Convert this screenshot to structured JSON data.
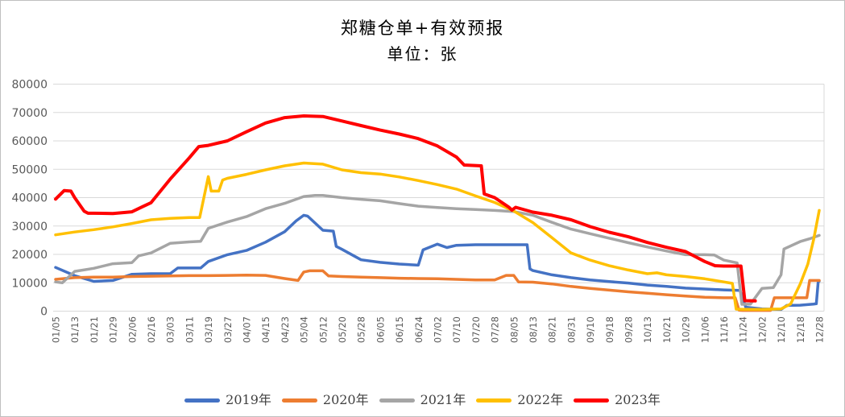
{
  "chart_data": {
    "type": "line",
    "title": "郑糖仓单+有效预报",
    "subtitle": "单位：张",
    "unit": "张",
    "ylim": [
      0,
      80000
    ],
    "ytick_step": 10000,
    "y_tick_labels": [
      "0",
      "10000",
      "20000",
      "30000",
      "40000",
      "50000",
      "60000",
      "70000",
      "80000"
    ],
    "grid": "horizontal-light-gray",
    "legend_position": "bottom",
    "axis_label_color": "#595959",
    "gridline_color": "#d9d9d9",
    "x_tick_labels": [
      "01/05",
      "01/13",
      "01/21",
      "01/29",
      "02/06",
      "02/16",
      "03/03",
      "03/11",
      "03/19",
      "03/27",
      "04/07",
      "04/15",
      "04/23",
      "05/04",
      "05/12",
      "05/20",
      "05/28",
      "06/05",
      "06/15",
      "06/24",
      "07/02",
      "07/10",
      "07/20",
      "07/28",
      "08/05",
      "08/13",
      "08/21",
      "08/31",
      "09/10",
      "09/18",
      "09/28",
      "10/13",
      "10/21",
      "10/29",
      "11/06",
      "11/16",
      "11/24",
      "12/02",
      "12/10",
      "12/18",
      "12/28"
    ],
    "series": [
      {
        "name": "2019年",
        "color": "#4472C4",
        "width": 3.5,
        "points": [
          [
            0,
            15400
          ],
          [
            1,
            12500
          ],
          [
            2,
            10500
          ],
          [
            3,
            10800
          ],
          [
            4,
            13000
          ],
          [
            5,
            13200
          ],
          [
            6,
            13200
          ],
          [
            6.4,
            15200
          ],
          [
            7,
            15200
          ],
          [
            7.6,
            15200
          ],
          [
            8,
            17500
          ],
          [
            9,
            19900
          ],
          [
            10,
            21400
          ],
          [
            11,
            24300
          ],
          [
            12,
            28000
          ],
          [
            12.6,
            31800
          ],
          [
            13,
            33800
          ],
          [
            13.2,
            33500
          ],
          [
            14,
            28500
          ],
          [
            14.55,
            28200
          ],
          [
            14.7,
            22800
          ],
          [
            15,
            21800
          ],
          [
            16,
            18100
          ],
          [
            17,
            17200
          ],
          [
            18,
            16600
          ],
          [
            19,
            16200
          ],
          [
            19.25,
            21600
          ],
          [
            20,
            23600
          ],
          [
            20.5,
            22400
          ],
          [
            21,
            23200
          ],
          [
            22,
            23400
          ],
          [
            23,
            23400
          ],
          [
            24,
            23400
          ],
          [
            24.7,
            23400
          ],
          [
            24.85,
            14900
          ],
          [
            25,
            14300
          ],
          [
            26,
            12800
          ],
          [
            27,
            11800
          ],
          [
            28,
            11000
          ],
          [
            29,
            10400
          ],
          [
            30,
            9900
          ],
          [
            31,
            9200
          ],
          [
            32,
            8700
          ],
          [
            33,
            8100
          ],
          [
            34,
            7800
          ],
          [
            35,
            7500
          ],
          [
            35.85,
            7300
          ],
          [
            36.15,
            1400
          ],
          [
            37,
            800
          ],
          [
            38,
            600
          ],
          [
            38.3,
            2000
          ],
          [
            39,
            2100
          ],
          [
            39.7,
            2500
          ],
          [
            39.85,
            2600
          ],
          [
            39.95,
            10600
          ],
          [
            40,
            10600
          ]
        ]
      },
      {
        "name": "2020年",
        "color": "#ED7D31",
        "width": 3.5,
        "points": [
          [
            0,
            11200
          ],
          [
            1,
            11800
          ],
          [
            2,
            12000
          ],
          [
            3,
            12000
          ],
          [
            4,
            12200
          ],
          [
            5,
            12300
          ],
          [
            6,
            12400
          ],
          [
            7,
            12500
          ],
          [
            8,
            12500
          ],
          [
            9,
            12600
          ],
          [
            10,
            12700
          ],
          [
            11,
            12600
          ],
          [
            12,
            11500
          ],
          [
            12.7,
            10800
          ],
          [
            13,
            13800
          ],
          [
            13.3,
            14200
          ],
          [
            14,
            14200
          ],
          [
            14.3,
            12400
          ],
          [
            15,
            12200
          ],
          [
            16,
            12000
          ],
          [
            17,
            11800
          ],
          [
            18,
            11600
          ],
          [
            19,
            11500
          ],
          [
            20,
            11400
          ],
          [
            21,
            11200
          ],
          [
            22,
            11000
          ],
          [
            23,
            11000
          ],
          [
            23.6,
            12600
          ],
          [
            24,
            12600
          ],
          [
            24.25,
            10300
          ],
          [
            25,
            10200
          ],
          [
            26,
            9600
          ],
          [
            27,
            8700
          ],
          [
            28,
            8000
          ],
          [
            29,
            7400
          ],
          [
            30,
            6800
          ],
          [
            31,
            6300
          ],
          [
            32,
            5800
          ],
          [
            33,
            5300
          ],
          [
            34,
            4900
          ],
          [
            35,
            4700
          ],
          [
            35.6,
            4700
          ],
          [
            35.8,
            300
          ],
          [
            36,
            250
          ],
          [
            37,
            250
          ],
          [
            37.45,
            250
          ],
          [
            37.65,
            4700
          ],
          [
            38,
            4700
          ],
          [
            39,
            4700
          ],
          [
            39.35,
            4700
          ],
          [
            39.5,
            10800
          ],
          [
            40,
            10800
          ]
        ]
      },
      {
        "name": "2021年",
        "color": "#A5A5A5",
        "width": 3.5,
        "points": [
          [
            0,
            10300
          ],
          [
            0.35,
            10000
          ],
          [
            1,
            14000
          ],
          [
            2,
            15100
          ],
          [
            3,
            16700
          ],
          [
            4,
            17100
          ],
          [
            4.35,
            19500
          ],
          [
            5,
            20500
          ],
          [
            6,
            23900
          ],
          [
            7,
            24400
          ],
          [
            7.6,
            24600
          ],
          [
            8,
            29200
          ],
          [
            9,
            31400
          ],
          [
            10,
            33300
          ],
          [
            11,
            36100
          ],
          [
            12,
            38000
          ],
          [
            13,
            40400
          ],
          [
            13.6,
            40800
          ],
          [
            14,
            40800
          ],
          [
            15,
            40000
          ],
          [
            16,
            39400
          ],
          [
            17,
            38900
          ],
          [
            18,
            37900
          ],
          [
            19,
            37000
          ],
          [
            20,
            36500
          ],
          [
            21,
            36100
          ],
          [
            22,
            35800
          ],
          [
            23,
            35500
          ],
          [
            24,
            35100
          ],
          [
            25,
            33800
          ],
          [
            26,
            31300
          ],
          [
            27,
            28900
          ],
          [
            28,
            27300
          ],
          [
            29,
            25700
          ],
          [
            30,
            24100
          ],
          [
            31,
            22600
          ],
          [
            32,
            21200
          ],
          [
            33,
            19900
          ],
          [
            34,
            19900
          ],
          [
            34.5,
            19800
          ],
          [
            35,
            18000
          ],
          [
            35.7,
            17000
          ],
          [
            35.95,
            2400
          ],
          [
            36.4,
            2500
          ],
          [
            37,
            8000
          ],
          [
            37.6,
            8300
          ],
          [
            38,
            12800
          ],
          [
            38.15,
            21900
          ],
          [
            39,
            24500
          ],
          [
            39.5,
            25500
          ],
          [
            40,
            26700
          ]
        ]
      },
      {
        "name": "2022年",
        "color": "#FFC000",
        "width": 3.5,
        "points": [
          [
            0,
            26900
          ],
          [
            1,
            27900
          ],
          [
            2,
            28700
          ],
          [
            3,
            29700
          ],
          [
            4,
            30900
          ],
          [
            5,
            32200
          ],
          [
            6,
            32700
          ],
          [
            7,
            33000
          ],
          [
            7.55,
            33000
          ],
          [
            8,
            47400
          ],
          [
            8.15,
            42300
          ],
          [
            8.55,
            42300
          ],
          [
            8.75,
            46200
          ],
          [
            9,
            46800
          ],
          [
            10,
            48200
          ],
          [
            11,
            49800
          ],
          [
            12,
            51200
          ],
          [
            13,
            52200
          ],
          [
            14,
            51800
          ],
          [
            15,
            49800
          ],
          [
            16,
            48800
          ],
          [
            17,
            48300
          ],
          [
            18,
            47300
          ],
          [
            19,
            46000
          ],
          [
            20,
            44600
          ],
          [
            21,
            43000
          ],
          [
            22,
            40600
          ],
          [
            23,
            38300
          ],
          [
            24,
            35300
          ],
          [
            25,
            31200
          ],
          [
            26,
            25900
          ],
          [
            27,
            20500
          ],
          [
            28,
            18000
          ],
          [
            29,
            16000
          ],
          [
            30,
            14500
          ],
          [
            31,
            13200
          ],
          [
            31.5,
            13500
          ],
          [
            32,
            12800
          ],
          [
            33,
            12200
          ],
          [
            34,
            11400
          ],
          [
            35,
            10300
          ],
          [
            35.45,
            9800
          ],
          [
            35.65,
            700
          ],
          [
            36,
            650
          ],
          [
            37,
            600
          ],
          [
            38,
            800
          ],
          [
            38.5,
            2500
          ],
          [
            39,
            9500
          ],
          [
            39.4,
            16500
          ],
          [
            39.7,
            25000
          ],
          [
            40,
            35500
          ]
        ]
      },
      {
        "name": "2023年",
        "color": "#FF0000",
        "width": 4,
        "points": [
          [
            0,
            39500
          ],
          [
            0.45,
            42500
          ],
          [
            0.8,
            42300
          ],
          [
            1,
            40000
          ],
          [
            1.5,
            35200
          ],
          [
            1.7,
            34500
          ],
          [
            2,
            34500
          ],
          [
            3,
            34400
          ],
          [
            4,
            35000
          ],
          [
            4.55,
            36800
          ],
          [
            5,
            38200
          ],
          [
            6,
            46500
          ],
          [
            7,
            54000
          ],
          [
            7.5,
            58000
          ],
          [
            8,
            58400
          ],
          [
            9,
            60000
          ],
          [
            10,
            63200
          ],
          [
            11,
            66300
          ],
          [
            12,
            68200
          ],
          [
            13,
            68800
          ],
          [
            14,
            68600
          ],
          [
            15,
            67000
          ],
          [
            16,
            65400
          ],
          [
            17,
            63800
          ],
          [
            18,
            62400
          ],
          [
            19,
            60800
          ],
          [
            20,
            58200
          ],
          [
            21,
            54300
          ],
          [
            21.4,
            51500
          ],
          [
            22.3,
            51200
          ],
          [
            22.45,
            41300
          ],
          [
            23,
            40000
          ],
          [
            23.75,
            36600
          ],
          [
            23.9,
            35600
          ],
          [
            24.1,
            36600
          ],
          [
            25,
            34900
          ],
          [
            26,
            33800
          ],
          [
            27,
            32200
          ],
          [
            28,
            29800
          ],
          [
            29,
            27800
          ],
          [
            30,
            26200
          ],
          [
            31,
            24200
          ],
          [
            32,
            22500
          ],
          [
            33,
            21000
          ],
          [
            34,
            17500
          ],
          [
            34.55,
            16000
          ],
          [
            35,
            15900
          ],
          [
            35.9,
            15900
          ],
          [
            36.1,
            3700
          ],
          [
            36.65,
            3600
          ]
        ]
      }
    ]
  }
}
